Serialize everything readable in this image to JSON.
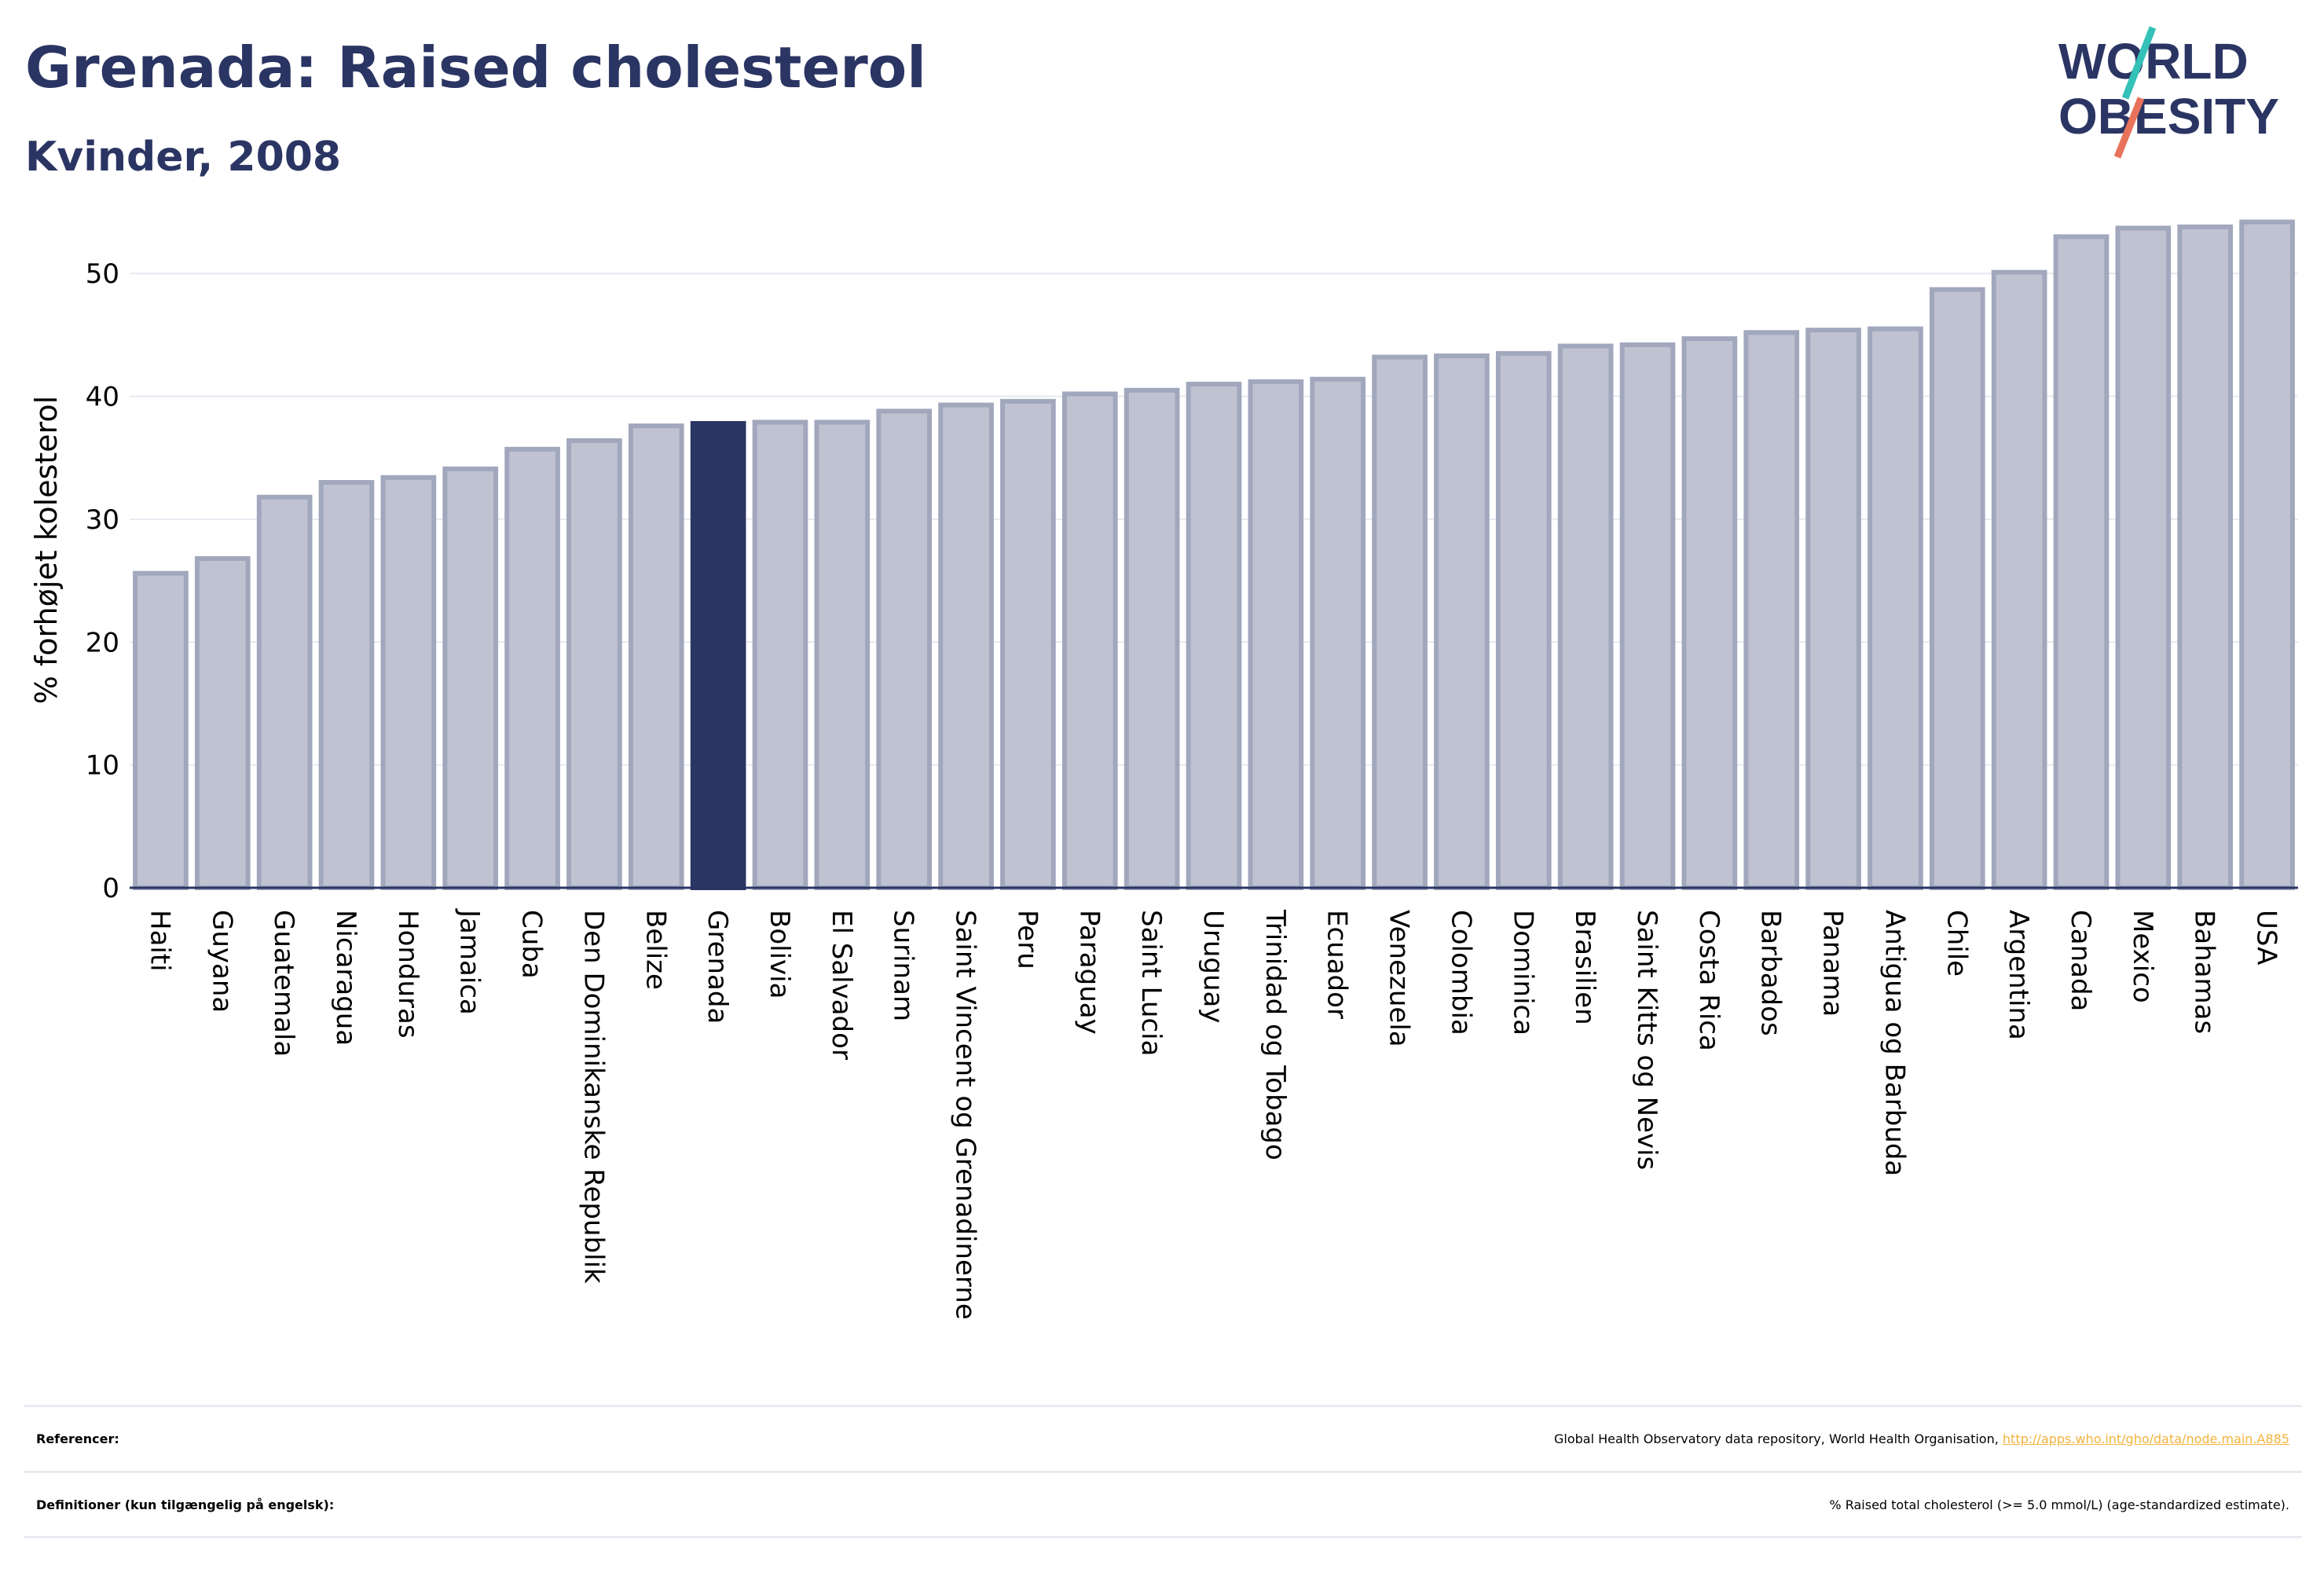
{
  "header": {
    "title": "Grenada: Raised cholesterol",
    "subtitle": "Kvinder, 2008"
  },
  "logo": {
    "line1": "WORLD",
    "line2": "OBESITY",
    "accent_colors": [
      "#34c1b8",
      "#e8735a"
    ]
  },
  "colors": {
    "bar": "#bfc3d1",
    "bar_stroke": "#a1a7bc",
    "highlight": "#2b3563",
    "text_dark": "#2b3563"
  },
  "chart_data": {
    "type": "bar",
    "ylabel": "% forhøjet kolesterol",
    "xlabel": "",
    "ylim": [
      0,
      55
    ],
    "yticks": [
      0,
      10,
      20,
      30,
      40,
      50
    ],
    "grid": true,
    "highlight": "Grenada",
    "categories": [
      "Haiti",
      "Guyana",
      "Guatemala",
      "Nicaragua",
      "Honduras",
      "Jamaica",
      "Cuba",
      "Den Dominikanske Republik",
      "Belize",
      "Grenada",
      "Bolivia",
      "El Salvador",
      "Surinam",
      "Saint Vincent og Grenadinerne",
      "Peru",
      "Paraguay",
      "Saint Lucia",
      "Uruguay",
      "Trinidad og Tobago",
      "Ecuador",
      "Venezuela",
      "Colombia",
      "Dominica",
      "Brasilien",
      "Saint Kitts og Nevis",
      "Costa Rica",
      "Barbados",
      "Panama",
      "Antigua og Barbuda",
      "Chile",
      "Argentina",
      "Canada",
      "Mexico",
      "Bahamas",
      "USA"
    ],
    "values": [
      25.6,
      26.8,
      31.8,
      33.0,
      33.4,
      34.1,
      35.7,
      36.4,
      37.6,
      37.8,
      37.9,
      37.9,
      38.8,
      39.3,
      39.6,
      40.2,
      40.5,
      41.0,
      41.2,
      41.4,
      43.2,
      43.3,
      43.5,
      44.1,
      44.2,
      44.7,
      45.2,
      45.4,
      45.5,
      48.7,
      50.1,
      53.0,
      53.7,
      53.8,
      54.2
    ]
  },
  "footer": {
    "references_label": "Referencer:",
    "references_text": "Global Health Observatory data repository, World Health Organisation, ",
    "references_link": "http://apps.who.int/gho/data/node.main.A885",
    "definitions_label": "Definitioner (kun tilgængelig på engelsk):",
    "definitions_text": "% Raised total cholesterol (>= 5.0 mmol/L) (age-standardized estimate)."
  }
}
